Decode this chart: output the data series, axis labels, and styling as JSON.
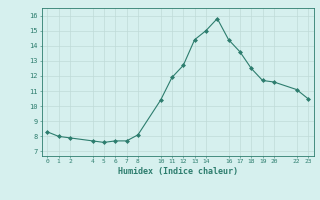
{
  "x": [
    0,
    1,
    2,
    4,
    5,
    6,
    7,
    8,
    10,
    11,
    12,
    13,
    14,
    15,
    16,
    17,
    18,
    19,
    20,
    22,
    23
  ],
  "y": [
    8.3,
    8.0,
    7.9,
    7.7,
    7.6,
    7.7,
    7.7,
    8.1,
    10.4,
    11.9,
    12.7,
    14.4,
    15.0,
    15.8,
    14.4,
    13.6,
    12.5,
    11.7,
    11.6,
    11.1,
    10.5
  ],
  "xticks": [
    0,
    1,
    2,
    4,
    5,
    6,
    7,
    8,
    10,
    11,
    12,
    13,
    14,
    16,
    17,
    18,
    19,
    20,
    22,
    23
  ],
  "xtick_labels": [
    "0",
    "1",
    "2",
    "4",
    "5",
    "6",
    "7",
    "8",
    "10",
    "11",
    "12",
    "13",
    "14",
    "16",
    "17",
    "18",
    "19",
    "20",
    "22",
    "23"
  ],
  "yticks": [
    7,
    8,
    9,
    10,
    11,
    12,
    13,
    14,
    15,
    16
  ],
  "ylim": [
    6.7,
    16.5
  ],
  "xlim": [
    -0.5,
    23.5
  ],
  "xlabel": "Humidex (Indice chaleur)",
  "line_color": "#2d7d6e",
  "marker": "D",
  "marker_size": 2.0,
  "bg_color": "#d6f0ee",
  "grid_color": "#c0dbd8"
}
